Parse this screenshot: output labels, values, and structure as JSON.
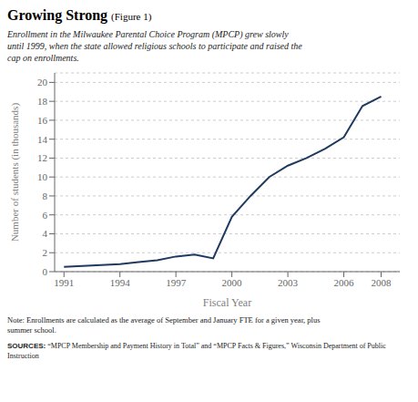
{
  "chart_data": {
    "type": "line",
    "title": "Growing Strong",
    "subtitle": [
      "Enrollment in the Milwaukee Parental Choice Program (MPCP) grew slowly",
      "until 1999, when the state allowed religious schools to participate and raised the",
      "cap on enrollments."
    ],
    "annotations": [
      "(Figure 1)",
      "Note: Enrollments are calculated as the average of September and January FTE for a given year, plus\nsummer school.",
      "SOURCES:",
      "“MPCP Membership and Payment History in Total” and “MPCP Facts & Figures,” Wisconsin Department of Public\nInstruction"
    ],
    "x": [
      1991,
      1992,
      1993,
      1994,
      1995,
      1996,
      1997,
      1998,
      1999,
      2000,
      2001,
      2002,
      2003,
      2004,
      2005,
      2006,
      2007,
      2008
    ],
    "values": [
      0.5,
      0.6,
      0.7,
      0.8,
      1.0,
      1.2,
      1.6,
      1.8,
      1.4,
      5.8,
      8.0,
      10.0,
      11.2,
      12.0,
      13.0,
      14.2,
      17.5,
      18.5
    ],
    "color": "#1f3a5f",
    "xlabel": "Fiscal Year",
    "ylabel": "Number of students (in thousands)",
    "xlim": [
      1990.5,
      2009.0
    ],
    "xticks": [
      1991,
      1994,
      1997,
      2000,
      2003,
      2006,
      2008
    ],
    "ylim": [
      0,
      21
    ],
    "yticks": [
      0,
      2,
      4,
      6,
      8,
      10,
      12,
      14,
      16,
      18,
      20
    ],
    "grid": true
  }
}
